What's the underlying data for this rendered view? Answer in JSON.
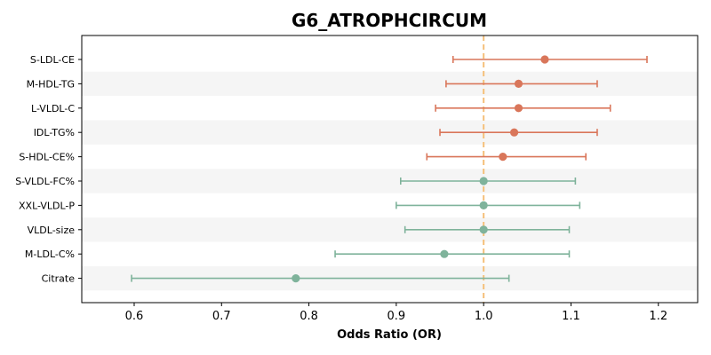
{
  "chart_data": {
    "type": "forest",
    "title": "G6_ATROPHCIRCUM",
    "xlabel": "Odds Ratio (OR)",
    "ylabel": "",
    "xlim": [
      0.54,
      1.245
    ],
    "xticks": [
      0.6,
      0.7,
      0.8,
      0.9,
      1.0,
      1.1,
      1.2
    ],
    "xtick_labels": [
      "0.6",
      "0.7",
      "0.8",
      "0.9",
      "1.0",
      "1.1",
      "1.2"
    ],
    "reference_line": 1.0,
    "grid": false,
    "row_banding": true,
    "colors": {
      "positive": "#d9765a",
      "negative": "#7fb39b",
      "reference": "#f5c07a",
      "band": "#f5f5f5"
    },
    "rows": [
      {
        "label": "S-LDL-CE",
        "or": 1.07,
        "lo": 0.965,
        "hi": 1.187,
        "group": "positive"
      },
      {
        "label": "M-HDL-TG",
        "or": 1.04,
        "lo": 0.957,
        "hi": 1.13,
        "group": "positive"
      },
      {
        "label": "L-VLDL-C",
        "or": 1.04,
        "lo": 0.945,
        "hi": 1.145,
        "group": "positive"
      },
      {
        "label": "IDL-TG%",
        "or": 1.035,
        "lo": 0.95,
        "hi": 1.13,
        "group": "positive"
      },
      {
        "label": "S-HDL-CE%",
        "or": 1.022,
        "lo": 0.935,
        "hi": 1.117,
        "group": "positive"
      },
      {
        "label": "S-VLDL-FC%",
        "or": 1.0,
        "lo": 0.905,
        "hi": 1.105,
        "group": "negative"
      },
      {
        "label": "XXL-VLDL-P",
        "or": 1.0,
        "lo": 0.9,
        "hi": 1.11,
        "group": "negative"
      },
      {
        "label": "VLDL-size",
        "or": 1.0,
        "lo": 0.91,
        "hi": 1.098,
        "group": "negative"
      },
      {
        "label": "M-LDL-C%",
        "or": 0.955,
        "lo": 0.83,
        "hi": 1.098,
        "group": "negative"
      },
      {
        "label": "Citrate",
        "or": 0.785,
        "lo": 0.597,
        "hi": 1.029,
        "group": "negative"
      }
    ]
  }
}
